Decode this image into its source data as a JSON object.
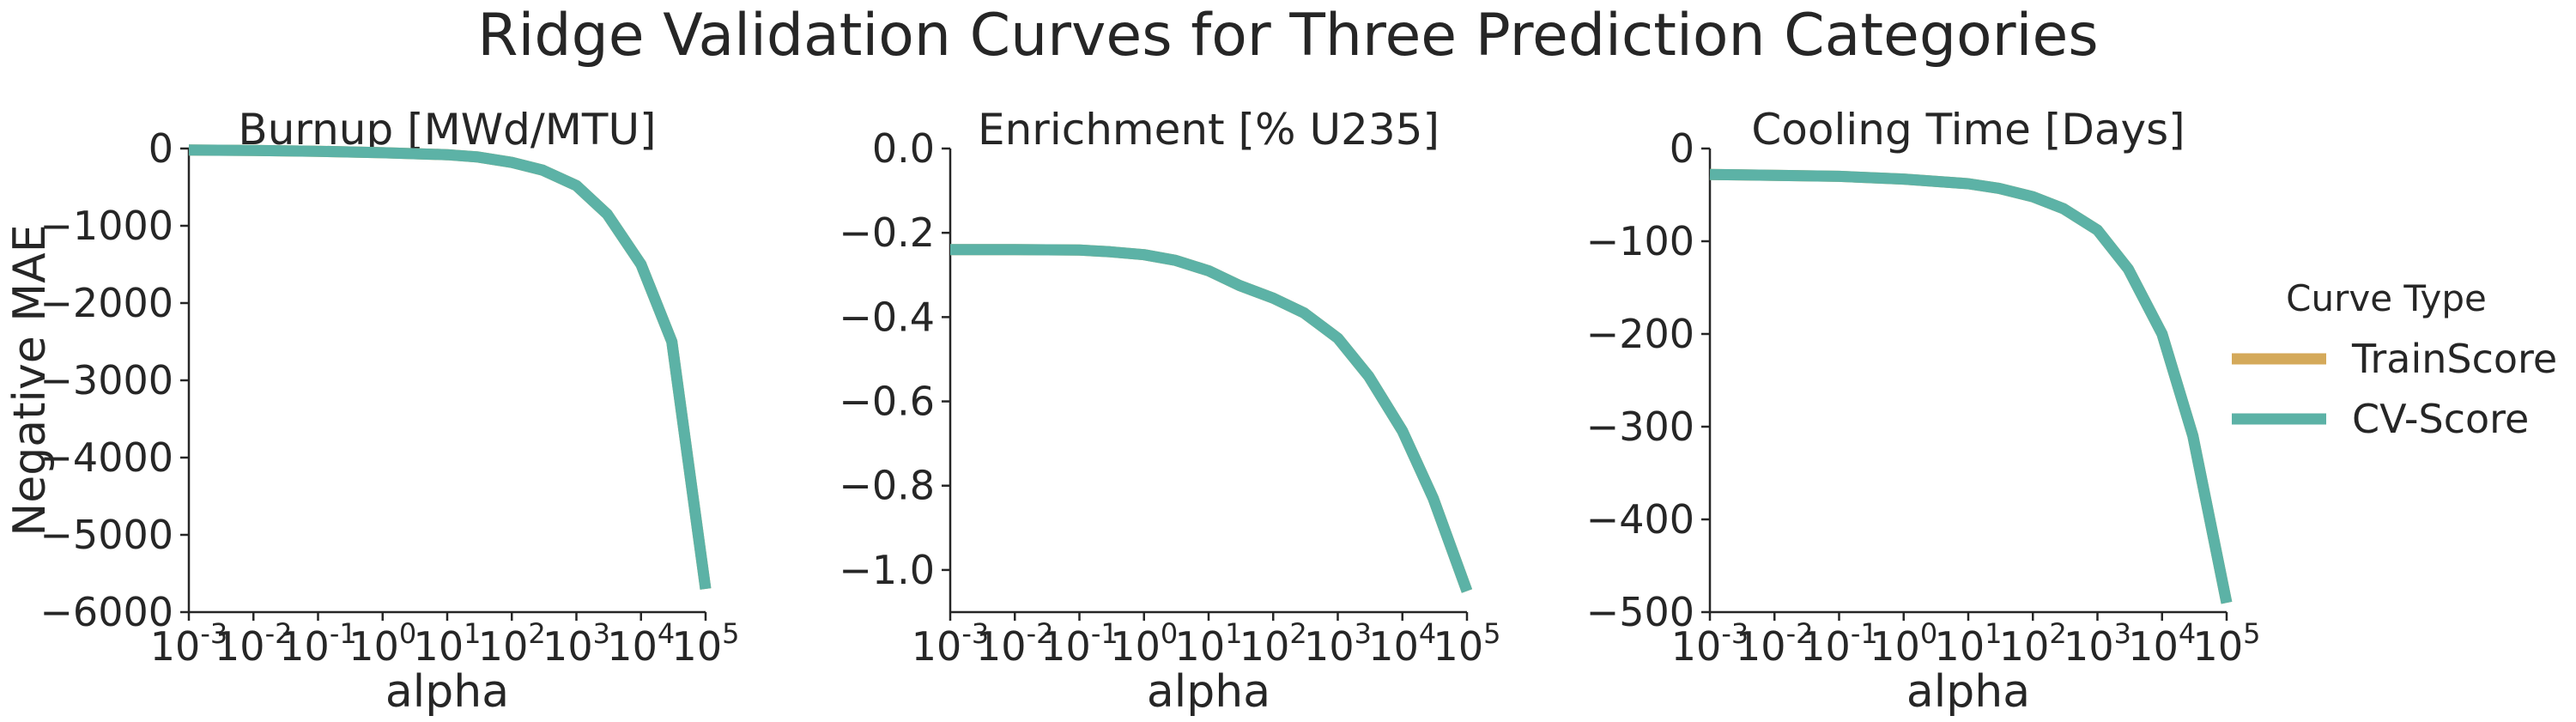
{
  "title": "Ridge Validation Curves for Three Prediction Categories",
  "legend": {
    "title": "Curve Type",
    "entries": [
      {
        "label": "TrainScore",
        "color": "#d4a95a"
      },
      {
        "label": "CV-Score",
        "color": "#5cb2a6"
      }
    ],
    "placement": "right"
  },
  "chart_data": [
    {
      "type": "line",
      "title": "Burnup [MWd/MTU]",
      "xlabel": "alpha",
      "ylabel": "Negative MAE",
      "xscale": "log",
      "xlim": [
        0.001,
        100000
      ],
      "ylim": [
        -6000,
        0
      ],
      "xticks": [
        "-3",
        "-2",
        "-1",
        "0",
        "1",
        "2",
        "3",
        "4",
        "5"
      ],
      "yticks": [
        {
          "value": 0,
          "label": "0"
        },
        {
          "value": -1000,
          "label": "−1000"
        },
        {
          "value": -2000,
          "label": "−2000"
        },
        {
          "value": -3000,
          "label": "−3000"
        },
        {
          "value": -4000,
          "label": "−4000"
        },
        {
          "value": -5000,
          "label": "−5000"
        },
        {
          "value": -6000,
          "label": "−6000"
        }
      ],
      "series": [
        {
          "name": "TrainScore",
          "x": [
            0.001,
            0.01,
            0.1,
            1,
            10,
            30,
            100,
            300,
            1000,
            3000,
            10000,
            30000,
            100000
          ],
          "y": [
            -20,
            -25,
            -35,
            -55,
            -80,
            -110,
            -180,
            -280,
            -480,
            -850,
            -1500,
            -2500,
            -5700
          ]
        },
        {
          "name": "CV-Score",
          "x": [
            0.001,
            0.01,
            0.1,
            1,
            10,
            30,
            100,
            300,
            1000,
            3000,
            10000,
            30000,
            100000
          ],
          "y": [
            -20,
            -25,
            -35,
            -55,
            -80,
            -110,
            -180,
            -280,
            -480,
            -850,
            -1500,
            -2500,
            -5700
          ]
        }
      ]
    },
    {
      "type": "line",
      "title": "Enrichment [% U235]",
      "xlabel": "alpha",
      "ylabel": "",
      "xscale": "log",
      "xlim": [
        0.001,
        100000
      ],
      "ylim": [
        -1.1,
        0
      ],
      "xticks": [
        "-3",
        "-2",
        "-1",
        "0",
        "1",
        "2",
        "3",
        "4",
        "5"
      ],
      "yticks": [
        {
          "value": 0,
          "label": "0.0"
        },
        {
          "value": -0.2,
          "label": "−0.2"
        },
        {
          "value": -0.4,
          "label": "−0.4"
        },
        {
          "value": -0.6,
          "label": "−0.6"
        },
        {
          "value": -0.8,
          "label": "−0.8"
        },
        {
          "value": -1.0,
          "label": "−1.0"
        }
      ],
      "series": [
        {
          "name": "TrainScore",
          "x": [
            0.001,
            0.01,
            0.1,
            0.3,
            1,
            3,
            10,
            30,
            100,
            300,
            1000,
            3000,
            10000,
            30000,
            100000
          ],
          "y": [
            -0.24,
            -0.24,
            -0.241,
            -0.245,
            -0.252,
            -0.265,
            -0.29,
            -0.325,
            -0.355,
            -0.39,
            -0.45,
            -0.54,
            -0.67,
            -0.83,
            -1.05
          ]
        },
        {
          "name": "CV-Score",
          "x": [
            0.001,
            0.01,
            0.1,
            0.3,
            1,
            3,
            10,
            30,
            100,
            300,
            1000,
            3000,
            10000,
            30000,
            100000
          ],
          "y": [
            -0.24,
            -0.24,
            -0.241,
            -0.245,
            -0.252,
            -0.265,
            -0.29,
            -0.325,
            -0.355,
            -0.39,
            -0.45,
            -0.54,
            -0.67,
            -0.83,
            -1.05
          ]
        }
      ]
    },
    {
      "type": "line",
      "title": "Cooling Time [Days]",
      "xlabel": "alpha",
      "ylabel": "",
      "xscale": "log",
      "xlim": [
        0.001,
        100000
      ],
      "ylim": [
        -500,
        0
      ],
      "xticks": [
        "-3",
        "-2",
        "-1",
        "0",
        "1",
        "2",
        "3",
        "4",
        "5"
      ],
      "yticks": [
        {
          "value": 0,
          "label": "0"
        },
        {
          "value": -100,
          "label": "−100"
        },
        {
          "value": -200,
          "label": "−200"
        },
        {
          "value": -300,
          "label": "−300"
        },
        {
          "value": -400,
          "label": "−400"
        },
        {
          "value": -500,
          "label": "−500"
        }
      ],
      "series": [
        {
          "name": "TrainScore",
          "x": [
            0.001,
            0.01,
            0.1,
            1,
            10,
            30,
            100,
            300,
            1000,
            3000,
            10000,
            30000,
            100000
          ],
          "y": [
            -28,
            -29,
            -30,
            -33,
            -38,
            -43,
            -52,
            -65,
            -88,
            -130,
            -200,
            -310,
            -490
          ]
        },
        {
          "name": "CV-Score",
          "x": [
            0.001,
            0.01,
            0.1,
            1,
            10,
            30,
            100,
            300,
            1000,
            3000,
            10000,
            30000,
            100000
          ],
          "y": [
            -28,
            -29,
            -30,
            -33,
            -38,
            -43,
            -52,
            -65,
            -88,
            -130,
            -200,
            -310,
            -490
          ]
        }
      ]
    }
  ]
}
